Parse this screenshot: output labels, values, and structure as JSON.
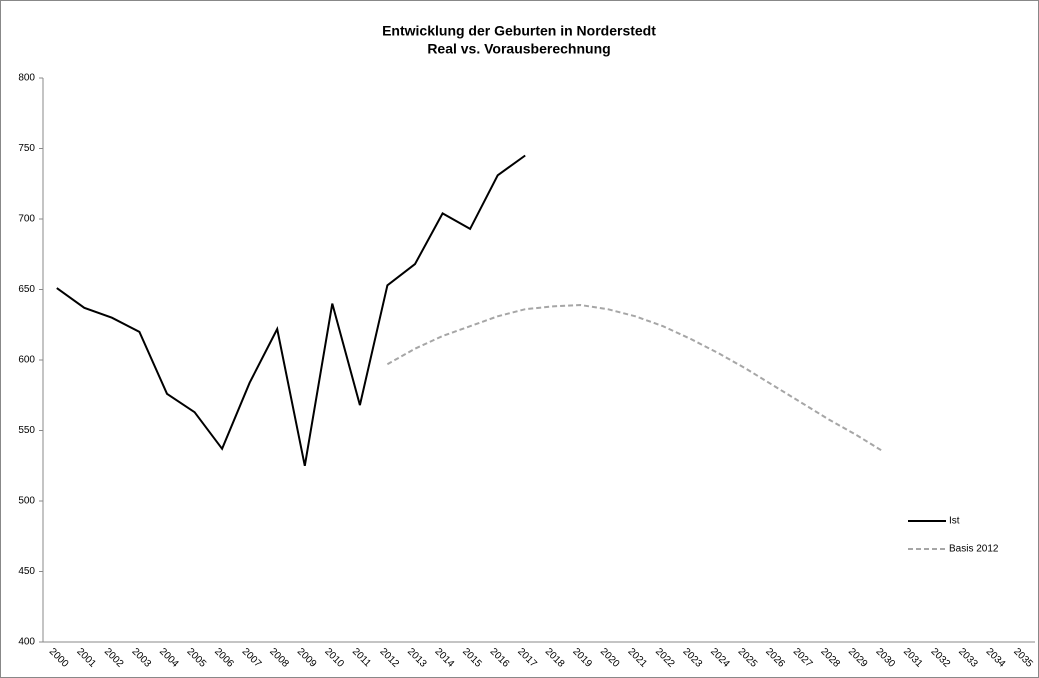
{
  "chart_data": {
    "type": "line",
    "title": "Entwicklung der Geburten in Norderstedt",
    "subtitle": "Real vs. Vorausberechnung",
    "categories": [
      "2000",
      "2001",
      "2002",
      "2003",
      "2004",
      "2005",
      "2006",
      "2007",
      "2008",
      "2009",
      "2010",
      "2011",
      "2012",
      "2013",
      "2014",
      "2015",
      "2016",
      "2017",
      "2018",
      "2019",
      "2020",
      "2021",
      "2022",
      "2023",
      "2024",
      "2025",
      "2026",
      "2027",
      "2028",
      "2029",
      "2030",
      "2031",
      "2032",
      "2033",
      "2034",
      "2035"
    ],
    "series": [
      {
        "name": "Ist",
        "color": "#000000",
        "dash": false,
        "values": [
          651,
          637,
          630,
          620,
          576,
          563,
          537,
          584,
          622,
          525,
          640,
          568,
          653,
          668,
          704,
          693,
          731,
          745,
          null,
          null,
          null,
          null,
          null,
          null,
          null,
          null,
          null,
          null,
          null,
          null,
          null,
          null,
          null,
          null,
          null,
          null
        ]
      },
      {
        "name": "Basis 2012",
        "color": "#a6a6a6",
        "dash": true,
        "values": [
          null,
          null,
          null,
          null,
          null,
          null,
          null,
          null,
          null,
          null,
          null,
          null,
          597,
          608,
          617,
          624,
          631,
          636,
          638,
          639,
          636,
          631,
          624,
          615,
          605,
          594,
          582,
          570,
          558,
          547,
          535,
          null,
          null,
          null,
          null,
          null
        ]
      }
    ],
    "ylim": [
      400,
      800
    ],
    "yticks": [
      400,
      450,
      500,
      550,
      600,
      650,
      700,
      750,
      800
    ],
    "legend": "right"
  }
}
